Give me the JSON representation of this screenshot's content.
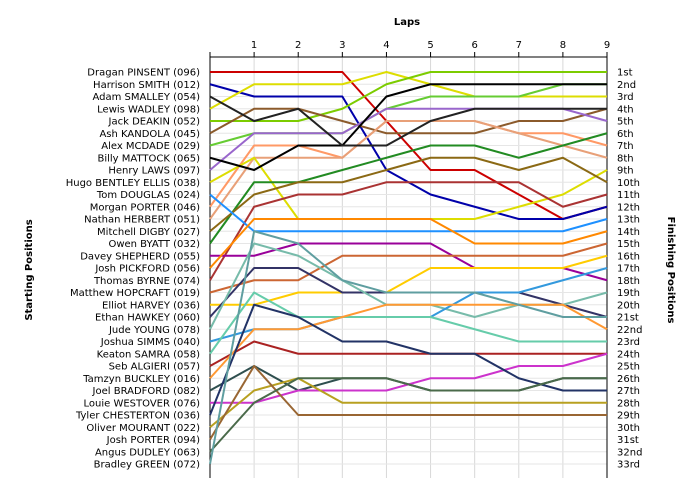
{
  "chart_data": {
    "type": "line",
    "title": "",
    "xlabel": "Laps",
    "ylabel_left": "Starting Positions",
    "ylabel_right": "Finishing Positions",
    "x_ticks": [
      "1",
      "2",
      "3",
      "4",
      "5",
      "6",
      "7",
      "8",
      "9"
    ],
    "finishing_labels": [
      "1st",
      "2nd",
      "3rd",
      "4th",
      "5th",
      "6th",
      "7th",
      "8th",
      "9th",
      "10th",
      "11th",
      "12th",
      "13th",
      "14th",
      "15th",
      "16th",
      "17th",
      "18th",
      "19th",
      "20th",
      "21st",
      "22nd",
      "23rd",
      "24th",
      "25th",
      "26th",
      "27th",
      "28th",
      "29th",
      "30th",
      "31st",
      "32nd",
      "33rd"
    ],
    "starting_labels": [
      "Dragan PINSENT (096)",
      "Harrison SMITH (012)",
      "Adam SMALLEY (054)",
      "Lewis WADLEY (098)",
      "Jack DEAKIN (052)",
      "Ash KANDOLA (045)",
      "Alex MCDADE (029)",
      "Billy MATTOCK (065)",
      "Henry LAWS (097)",
      "Hugo BENTLEY ELLIS (038)",
      "Tom DOUGLAS (024)",
      "Morgan PORTER (046)",
      "Nathan HERBERT (051)",
      "Mitchell DIGBY (027)",
      "Owen BYATT (032)",
      "Davey SHEPHERD (055)",
      "Josh PICKFORD (056)",
      "Thomas BYRNE (074)",
      "Matthew HOPCRAFT (019)",
      "Elliot HARVEY (036)",
      "Ethan HAWKEY (060)",
      "Jude YOUNG (078)",
      "Joshua SIMMS (040)",
      "Keaton SAMRA (058)",
      "Seb ALGIERI (057)",
      "Tamzyn BUCKLEY (016)",
      "Joel BRADFORD (082)",
      "Louie WESTOVER (076)",
      "Tyler CHESTERTON (036)",
      "Oliver MOURANT (022)",
      "Josh PORTER (094)",
      "Angus DUDLEY (063)",
      "Bradley GREEN (072)"
    ],
    "ylim": [
      1,
      33
    ],
    "xlim": [
      0,
      9
    ],
    "grid": true,
    "series": [
      {
        "color": "#cc0000",
        "positions": [
          1,
          1,
          1,
          1,
          5,
          9,
          9,
          11,
          13,
          12
        ]
      },
      {
        "color": "#0000aa",
        "positions": [
          2,
          3,
          3,
          3,
          9,
          11,
          12,
          13,
          13,
          12
        ]
      },
      {
        "color": "#dddd00",
        "positions": [
          4,
          2,
          2,
          2,
          1,
          2,
          3,
          3,
          3,
          3
        ]
      },
      {
        "color": "#7ccc00",
        "positions": [
          5,
          5,
          5,
          4,
          2,
          1,
          1,
          1,
          1,
          1
        ]
      },
      {
        "color": "#8b5a2b",
        "positions": [
          6,
          4,
          4,
          5,
          6,
          6,
          6,
          5,
          5,
          4
        ]
      },
      {
        "color": "#66cc33",
        "positions": [
          7,
          6,
          6,
          6,
          4,
          3,
          3,
          3,
          2,
          2
        ]
      },
      {
        "color": "#9966cc",
        "positions": [
          9,
          6,
          6,
          6,
          4,
          4,
          4,
          4,
          4,
          5
        ]
      },
      {
        "color": "#ff9966",
        "positions": [
          12,
          7,
          7,
          8,
          5,
          5,
          5,
          6,
          6,
          7
        ]
      },
      {
        "color": "#e8a078",
        "positions": [
          13,
          8,
          8,
          8,
          5,
          5,
          5,
          6,
          7,
          8
        ]
      },
      {
        "color": "#dddd00",
        "positions": [
          10,
          8,
          13,
          13,
          13,
          13,
          13,
          12,
          11,
          9
        ]
      },
      {
        "color": "#000000",
        "positions": [
          8,
          9,
          7,
          7,
          3,
          2,
          2,
          2,
          2,
          2
        ]
      },
      {
        "color": "#228b22",
        "positions": [
          15,
          10,
          10,
          9,
          8,
          7,
          7,
          8,
          7,
          6
        ]
      },
      {
        "color": "#8b6914",
        "positions": [
          14,
          11,
          10,
          10,
          9,
          8,
          8,
          9,
          8,
          10
        ]
      },
      {
        "color": "#aa3333",
        "positions": [
          18,
          12,
          11,
          11,
          10,
          10,
          10,
          10,
          12,
          11
        ]
      },
      {
        "color": "#1e90ff",
        "positions": [
          11,
          14,
          14,
          14,
          14,
          14,
          14,
          14,
          14,
          13
        ]
      },
      {
        "color": "#990099",
        "positions": [
          16,
          16,
          15,
          15,
          15,
          15,
          17,
          17,
          17,
          18
        ]
      },
      {
        "color": "#ff8800",
        "positions": [
          17,
          13,
          13,
          13,
          13,
          13,
          15,
          15,
          15,
          14
        ]
      },
      {
        "color": "#cc6633",
        "positions": [
          19,
          18,
          18,
          16,
          16,
          16,
          16,
          16,
          16,
          15
        ]
      },
      {
        "color": "#ffcc00",
        "positions": [
          20,
          20,
          19,
          19,
          19,
          17,
          17,
          17,
          17,
          16
        ]
      },
      {
        "color": "#333366",
        "positions": [
          21,
          17,
          17,
          19,
          19,
          19,
          19,
          19,
          20,
          21
        ]
      },
      {
        "color": "#77bbaa",
        "positions": [
          22,
          15,
          16,
          18,
          20,
          20,
          21,
          20,
          20,
          19
        ]
      },
      {
        "color": "#3399dd",
        "positions": [
          23,
          22,
          22,
          21,
          21,
          21,
          19,
          19,
          18,
          17
        ]
      },
      {
        "color": "#66ccaa",
        "positions": [
          24,
          19,
          21,
          21,
          21,
          21,
          22,
          23,
          23,
          23
        ]
      },
      {
        "color": "#aa2222",
        "positions": [
          25,
          23,
          24,
          24,
          24,
          24,
          24,
          24,
          24,
          24
        ]
      },
      {
        "color": "#ff9933",
        "positions": [
          26,
          22,
          22,
          21,
          20,
          20,
          20,
          20,
          20,
          22
        ]
      },
      {
        "color": "#2f4f4f",
        "positions": [
          27,
          25,
          27,
          26,
          26,
          27,
          27,
          27,
          26,
          26
        ]
      },
      {
        "color": "#cc33cc",
        "positions": [
          28,
          28,
          27,
          27,
          27,
          26,
          26,
          25,
          25,
          24
        ]
      },
      {
        "color": "#223366",
        "positions": [
          29,
          20,
          21,
          23,
          23,
          24,
          24,
          26,
          27,
          27
        ]
      },
      {
        "color": "#b8a020",
        "positions": [
          30,
          27,
          26,
          28,
          28,
          28,
          28,
          28,
          28,
          28
        ]
      },
      {
        "color": "#996633",
        "positions": [
          31,
          25,
          29,
          29,
          29,
          29,
          29,
          29,
          29,
          29
        ]
      },
      {
        "color": "#4a6a4a",
        "positions": [
          32,
          28,
          26,
          26,
          26,
          27,
          27,
          27,
          26,
          26
        ]
      },
      {
        "color": "#5f9ea0",
        "positions": [
          33,
          14,
          15,
          18,
          19,
          19,
          19,
          20,
          21,
          21
        ]
      },
      {
        "color": "#222222",
        "positions": [
          3,
          5,
          4,
          7,
          7,
          5,
          4,
          4,
          4,
          4
        ]
      }
    ]
  }
}
